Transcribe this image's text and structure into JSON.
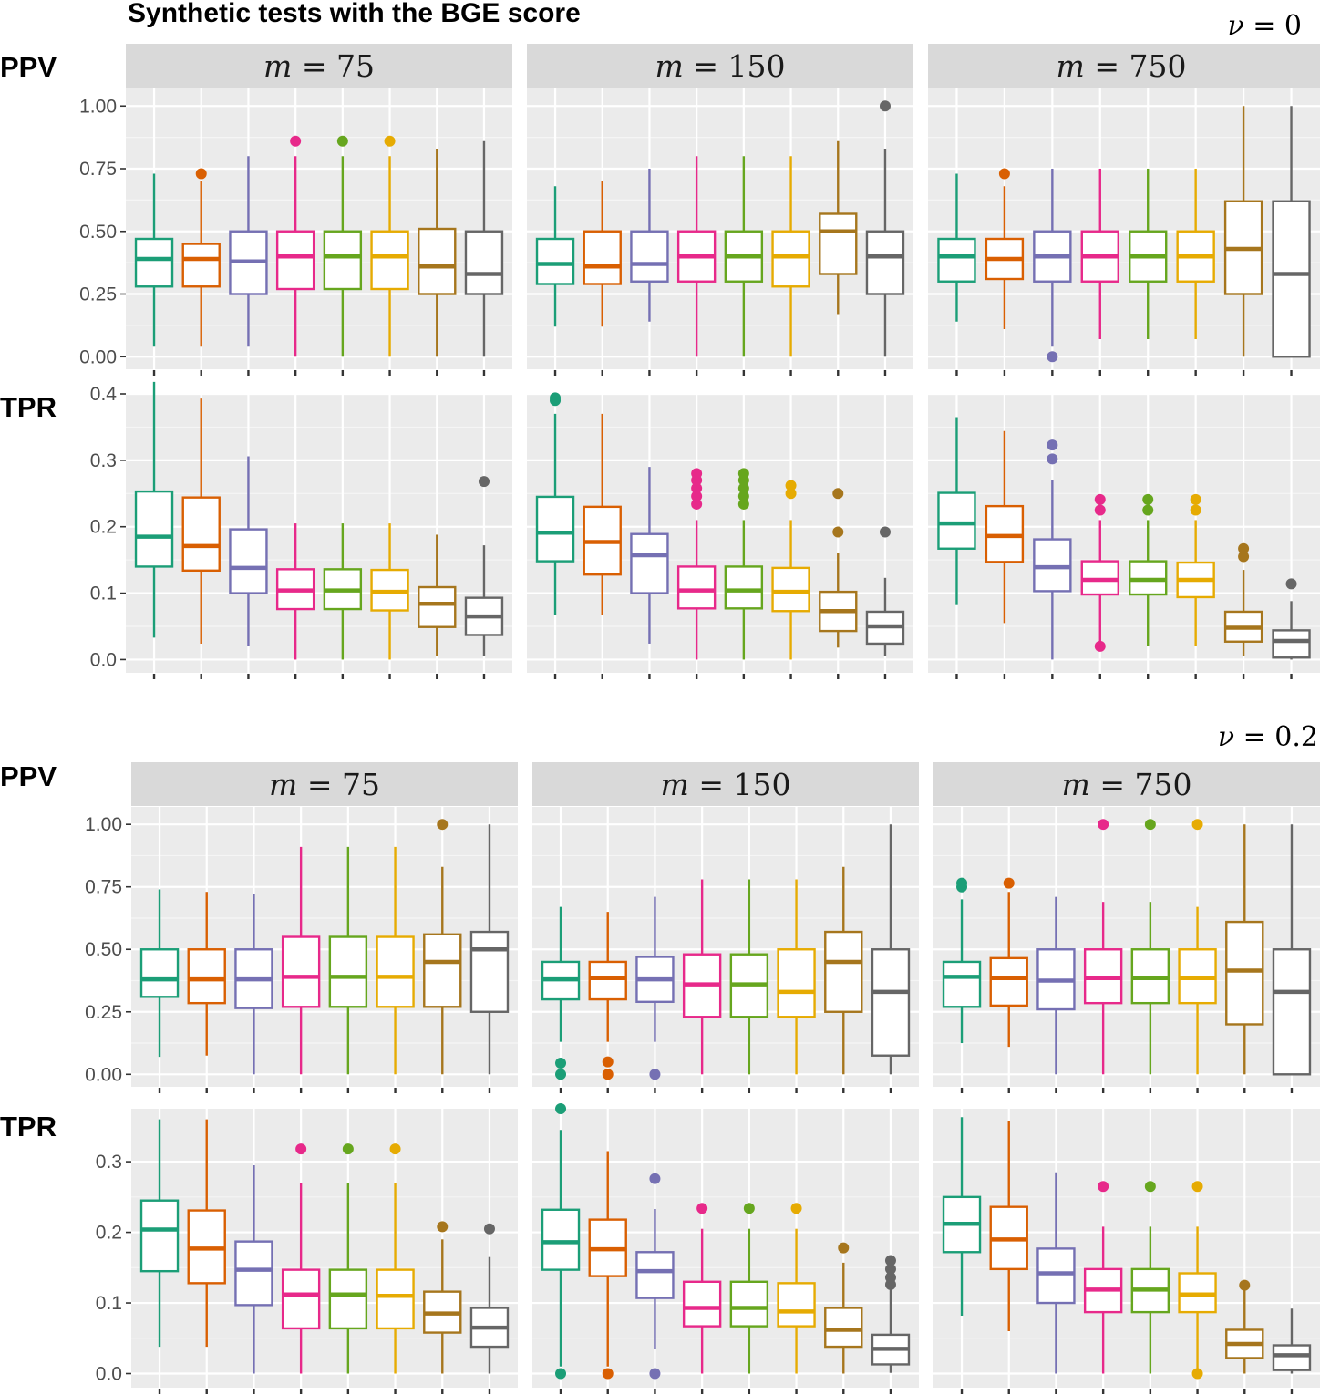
{
  "title": "Synthetic tests with the BGE score",
  "colors": [
    "#1b9e77",
    "#d95f02",
    "#7570b3",
    "#e7298a",
    "#66a61e",
    "#e6ab02",
    "#a6761d",
    "#666666"
  ],
  "sections": [
    {
      "nu_var": "ν",
      "nu_eq": " = ",
      "nu_val": "0"
    },
    {
      "nu_var": "ν",
      "nu_eq": " = ",
      "nu_val": "0.2"
    }
  ],
  "row_labels": [
    "PPV",
    "TPR",
    "PPV",
    "TPR"
  ],
  "strip_labels": [
    {
      "var": "m",
      "eq": " = ",
      "val": "75"
    },
    {
      "var": "m",
      "eq": " = ",
      "val": "150"
    },
    {
      "var": "m",
      "eq": " = ",
      "val": "750"
    }
  ],
  "chart_data": {
    "type": "boxplot",
    "title": "Synthetic tests with the BGE score",
    "facets": {
      "columns": [
        "m = 75",
        "m = 150",
        "m = 750"
      ],
      "rows": [
        "PPV (ν = 0)",
        "TPR (ν = 0)",
        "PPV (ν = 0.2)",
        "TPR (ν = 0.2)"
      ]
    },
    "groups_per_panel": 8,
    "row_axes": [
      {
        "ylim": [
          -0.05,
          1.07
        ],
        "ticks": [
          0.0,
          0.25,
          0.5,
          0.75,
          1.0
        ],
        "tick_labels": [
          "0.00",
          "0.25",
          "0.50",
          "0.75",
          "1.00"
        ]
      },
      {
        "ylim": [
          -0.02,
          0.4
        ],
        "ticks": [
          0.0,
          0.1,
          0.2,
          0.3,
          0.4
        ],
        "tick_labels": [
          "0.0",
          "0.1",
          "0.2",
          "0.3",
          "0.4"
        ]
      },
      {
        "ylim": [
          -0.05,
          1.07
        ],
        "ticks": [
          0.0,
          0.25,
          0.5,
          0.75,
          1.0
        ],
        "tick_labels": [
          "0.00",
          "0.25",
          "0.50",
          "0.75",
          "1.00"
        ]
      },
      {
        "ylim": [
          -0.02,
          0.375
        ],
        "ticks": [
          0.0,
          0.1,
          0.2,
          0.3
        ],
        "tick_labels": [
          "0.0",
          "0.1",
          "0.2",
          "0.3"
        ]
      }
    ],
    "panels": [
      [
        {
          "boxes": [
            [
              0.04,
              0.28,
              0.39,
              0.47,
              0.73
            ],
            [
              0.04,
              0.28,
              0.39,
              0.45,
              0.7
            ],
            [
              0.04,
              0.25,
              0.38,
              0.5,
              0.8
            ],
            [
              0,
              0.27,
              0.4,
              0.5,
              0.8
            ],
            [
              0,
              0.27,
              0.4,
              0.5,
              0.8
            ],
            [
              0,
              0.27,
              0.4,
              0.5,
              0.8
            ],
            [
              0,
              0.25,
              0.36,
              0.51,
              0.83
            ],
            [
              0,
              0.25,
              0.33,
              0.5,
              0.86
            ]
          ],
          "outliers": [
            [],
            [
              0.73
            ],
            [],
            [
              0.86
            ],
            [
              0.86
            ],
            [
              0.86
            ],
            [],
            []
          ]
        },
        {
          "boxes": [
            [
              0.12,
              0.29,
              0.37,
              0.47,
              0.68
            ],
            [
              0.12,
              0.29,
              0.36,
              0.5,
              0.7
            ],
            [
              0.14,
              0.3,
              0.37,
              0.5,
              0.75
            ],
            [
              0,
              0.3,
              0.4,
              0.5,
              0.8
            ],
            [
              0,
              0.3,
              0.4,
              0.5,
              0.8
            ],
            [
              0,
              0.28,
              0.4,
              0.5,
              0.8
            ],
            [
              0.17,
              0.33,
              0.5,
              0.57,
              0.86
            ],
            [
              0,
              0.25,
              0.4,
              0.5,
              0.83
            ]
          ],
          "outliers": [
            [],
            [],
            [],
            [],
            [],
            [],
            [],
            [
              1.0
            ]
          ]
        },
        {
          "boxes": [
            [
              0.14,
              0.3,
              0.4,
              0.47,
              0.73
            ],
            [
              0.11,
              0.31,
              0.39,
              0.47,
              0.68
            ],
            [
              0.04,
              0.3,
              0.4,
              0.5,
              0.75
            ],
            [
              0.07,
              0.3,
              0.4,
              0.5,
              0.75
            ],
            [
              0.07,
              0.3,
              0.4,
              0.5,
              0.75
            ],
            [
              0.07,
              0.3,
              0.4,
              0.5,
              0.75
            ],
            [
              0,
              0.25,
              0.43,
              0.62,
              1.0
            ],
            [
              0,
              0,
              0.33,
              0.62,
              1.0
            ]
          ],
          "outliers": [
            [],
            [
              0.73
            ],
            [
              0
            ],
            [],
            [],
            [],
            [],
            []
          ]
        }
      ],
      [
        {
          "boxes": [
            [
              0.033,
              0.14,
              0.185,
              0.253,
              0.418
            ],
            [
              0.024,
              0.134,
              0.171,
              0.244,
              0.393
            ],
            [
              0.021,
              0.1,
              0.138,
              0.196,
              0.306
            ],
            [
              0,
              0.076,
              0.104,
              0.136,
              0.205
            ],
            [
              0,
              0.076,
              0.104,
              0.136,
              0.205
            ],
            [
              0,
              0.074,
              0.102,
              0.135,
              0.205
            ],
            [
              0.005,
              0.049,
              0.084,
              0.109,
              0.188
            ],
            [
              0.005,
              0.037,
              0.065,
              0.093,
              0.172
            ]
          ],
          "outliers": [
            [],
            [],
            [],
            [],
            [],
            [],
            [],
            [
              0.268
            ]
          ]
        },
        {
          "boxes": [
            [
              0.067,
              0.148,
              0.191,
              0.245,
              0.37
            ],
            [
              0.067,
              0.128,
              0.177,
              0.23,
              0.37
            ],
            [
              0.024,
              0.1,
              0.157,
              0.189,
              0.29
            ],
            [
              0,
              0.077,
              0.104,
              0.14,
              0.21
            ],
            [
              0,
              0.077,
              0.104,
              0.14,
              0.21
            ],
            [
              0,
              0.073,
              0.102,
              0.138,
              0.21
            ],
            [
              0.018,
              0.043,
              0.073,
              0.102,
              0.16
            ],
            [
              0.005,
              0.024,
              0.05,
              0.072,
              0.123
            ]
          ],
          "outliers": [
            [
              0.39,
              0.394
            ],
            [],
            [],
            [
              0.234,
              0.246,
              0.258,
              0.27,
              0.28
            ],
            [
              0.234,
              0.246,
              0.258,
              0.27,
              0.28
            ],
            [
              0.25,
              0.262
            ],
            [
              0.25,
              0.192
            ],
            [
              0.192
            ]
          ]
        },
        {
          "boxes": [
            [
              0.082,
              0.167,
              0.205,
              0.251,
              0.365
            ],
            [
              0.055,
              0.147,
              0.186,
              0.231,
              0.344
            ],
            [
              0,
              0.103,
              0.139,
              0.181,
              0.27
            ],
            [
              0.02,
              0.098,
              0.12,
              0.148,
              0.21
            ],
            [
              0.02,
              0.098,
              0.12,
              0.148,
              0.21
            ],
            [
              0.02,
              0.094,
              0.12,
              0.146,
              0.21
            ],
            [
              0.005,
              0.027,
              0.048,
              0.072,
              0.135
            ],
            [
              0,
              0.003,
              0.028,
              0.044,
              0.088
            ]
          ],
          "outliers": [
            [],
            [],
            [
              0.302,
              0.323
            ],
            [
              0.225,
              0.241,
              0.02
            ],
            [
              0.225,
              0.241
            ],
            [
              0.225,
              0.241
            ],
            [
              0.155,
              0.167
            ],
            [
              0.114
            ]
          ]
        }
      ],
      [
        {
          "boxes": [
            [
              0.07,
              0.31,
              0.38,
              0.5,
              0.74
            ],
            [
              0.075,
              0.285,
              0.38,
              0.5,
              0.73
            ],
            [
              0,
              0.265,
              0.38,
              0.5,
              0.72
            ],
            [
              0,
              0.27,
              0.39,
              0.55,
              0.91
            ],
            [
              0,
              0.27,
              0.39,
              0.55,
              0.91
            ],
            [
              0,
              0.27,
              0.39,
              0.55,
              0.91
            ],
            [
              0,
              0.27,
              0.45,
              0.56,
              0.83
            ],
            [
              0,
              0.25,
              0.5,
              0.57,
              1.0
            ]
          ],
          "outliers": [
            [],
            [],
            [],
            [],
            [],
            [],
            [
              1.0
            ],
            []
          ]
        },
        {
          "boxes": [
            [
              0.13,
              0.3,
              0.38,
              0.45,
              0.67
            ],
            [
              0.13,
              0.3,
              0.385,
              0.45,
              0.65
            ],
            [
              0.13,
              0.29,
              0.38,
              0.47,
              0.71
            ],
            [
              0,
              0.23,
              0.36,
              0.48,
              0.78
            ],
            [
              0,
              0.23,
              0.36,
              0.48,
              0.78
            ],
            [
              0,
              0.23,
              0.33,
              0.5,
              0.78
            ],
            [
              0,
              0.25,
              0.45,
              0.57,
              0.83
            ],
            [
              0,
              0.075,
              0.33,
              0.5,
              1.0
            ]
          ],
          "outliers": [
            [
              0.045,
              0
            ],
            [
              0.05,
              0
            ],
            [
              0
            ],
            [],
            [],
            [],
            [],
            []
          ]
        },
        {
          "boxes": [
            [
              0.125,
              0.27,
              0.39,
              0.45,
              0.7
            ],
            [
              0.11,
              0.275,
              0.385,
              0.465,
              0.73
            ],
            [
              0,
              0.26,
              0.375,
              0.5,
              0.71
            ],
            [
              0,
              0.285,
              0.385,
              0.5,
              0.69
            ],
            [
              0,
              0.285,
              0.385,
              0.5,
              0.69
            ],
            [
              0,
              0.285,
              0.385,
              0.5,
              0.67
            ],
            [
              0,
              0.2,
              0.415,
              0.61,
              1.0
            ],
            [
              0,
              0,
              0.33,
              0.5,
              1.0
            ]
          ],
          "outliers": [
            [
              0.75,
              0.765
            ],
            [
              0.765
            ],
            [],
            [
              1.0
            ],
            [
              1.0
            ],
            [
              1.0
            ],
            [],
            []
          ]
        }
      ],
      [
        {
          "boxes": [
            [
              0.038,
              0.145,
              0.204,
              0.245,
              0.36
            ],
            [
              0.038,
              0.128,
              0.177,
              0.231,
              0.36
            ],
            [
              0,
              0.097,
              0.147,
              0.187,
              0.295
            ],
            [
              0,
              0.064,
              0.112,
              0.147,
              0.27
            ],
            [
              0,
              0.064,
              0.112,
              0.147,
              0.27
            ],
            [
              0,
              0.064,
              0.11,
              0.147,
              0.27
            ],
            [
              0,
              0.058,
              0.085,
              0.116,
              0.19
            ],
            [
              0,
              0.038,
              0.065,
              0.093,
              0.165
            ]
          ],
          "outliers": [
            [],
            [],
            [],
            [
              0.318
            ],
            [
              0.318
            ],
            [
              0.318
            ],
            [
              0.208
            ],
            [
              0.205
            ]
          ]
        },
        {
          "boxes": [
            [
              0.01,
              0.147,
              0.186,
              0.232,
              0.345
            ],
            [
              0.01,
              0.138,
              0.176,
              0.218,
              0.315
            ],
            [
              0.035,
              0.107,
              0.145,
              0.172,
              0.233
            ],
            [
              0,
              0.067,
              0.093,
              0.13,
              0.205
            ],
            [
              0,
              0.067,
              0.093,
              0.13,
              0.205
            ],
            [
              0,
              0.067,
              0.088,
              0.128,
              0.205
            ],
            [
              0,
              0.038,
              0.062,
              0.093,
              0.157
            ],
            [
              0.001,
              0.013,
              0.035,
              0.055,
              0.12
            ]
          ],
          "outliers": [
            [
              0.375,
              0
            ],
            [
              0
            ],
            [
              0.276,
              0
            ],
            [
              0.234
            ],
            [
              0.234
            ],
            [
              0.234
            ],
            [
              0.178
            ],
            [
              0.126,
              0.136,
              0.148,
              0.16
            ]
          ]
        },
        {
          "boxes": [
            [
              0.082,
              0.172,
              0.212,
              0.25,
              0.363
            ],
            [
              0.06,
              0.148,
              0.19,
              0.236,
              0.357
            ],
            [
              0,
              0.1,
              0.142,
              0.177,
              0.285
            ],
            [
              0,
              0.087,
              0.119,
              0.148,
              0.208
            ],
            [
              0,
              0.087,
              0.119,
              0.148,
              0.208
            ],
            [
              0,
              0.087,
              0.112,
              0.142,
              0.208
            ],
            [
              0,
              0.022,
              0.042,
              0.062,
              0.118
            ],
            [
              0,
              0.005,
              0.026,
              0.04,
              0.092
            ]
          ],
          "outliers": [
            [],
            [],
            [],
            [
              0.265
            ],
            [
              0.265
            ],
            [
              0.265,
              0
            ],
            [
              0.125
            ],
            []
          ]
        }
      ]
    ]
  }
}
